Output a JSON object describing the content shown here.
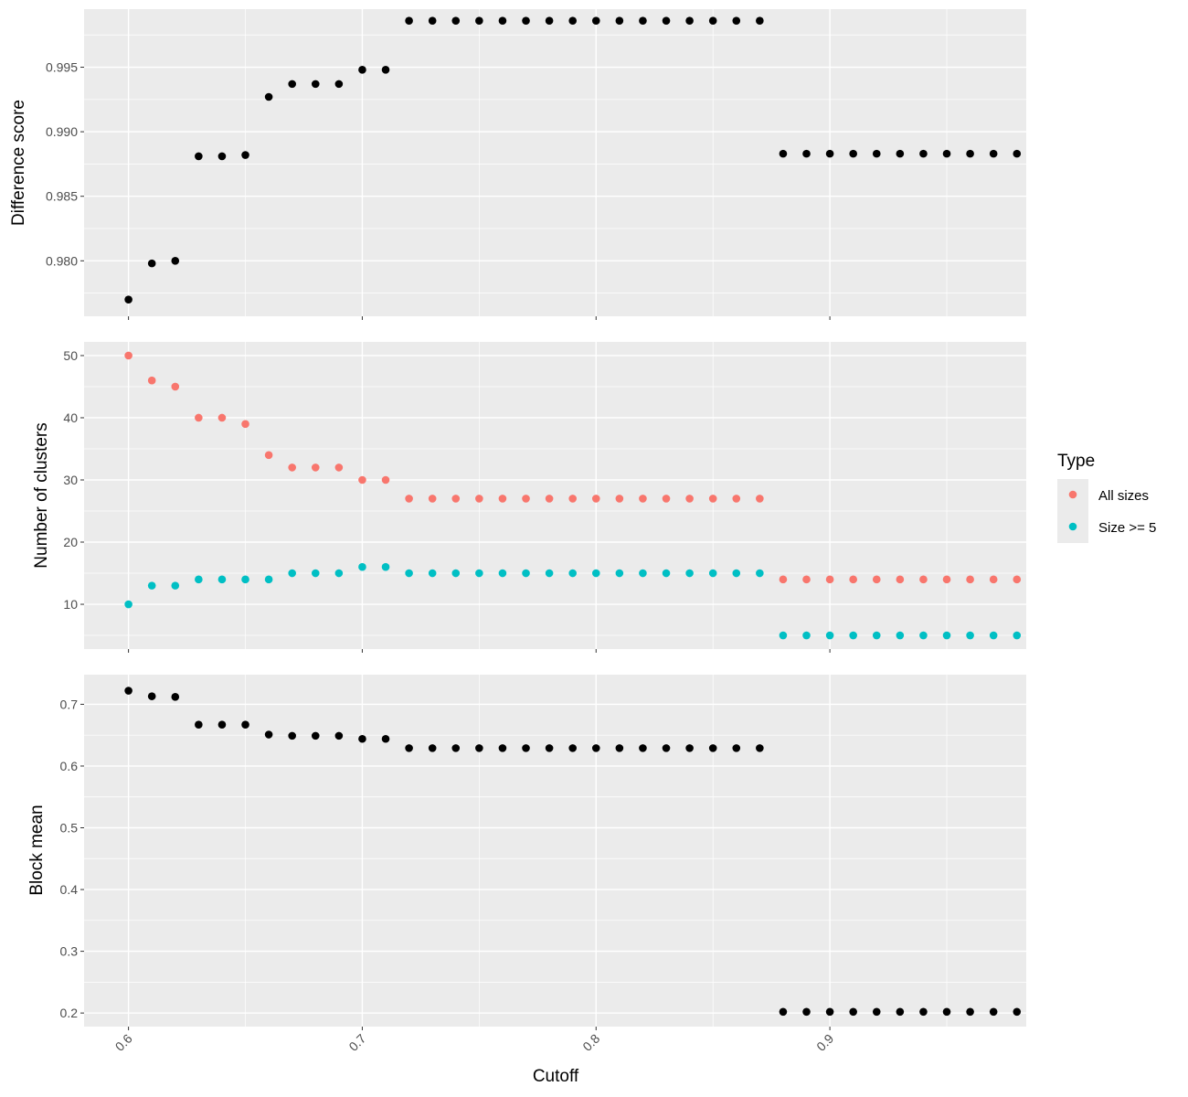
{
  "chart_data": [
    {
      "type": "scatter",
      "panel": "difference",
      "ylabel": "Difference score",
      "xlabel": "",
      "xlim": [
        0.581,
        0.984
      ],
      "ylim": [
        0.9757,
        0.9995
      ],
      "yticks": [
        0.98,
        0.985,
        0.99,
        0.995
      ],
      "ytick_labels": [
        "0.980",
        "0.985",
        "0.990",
        "0.995"
      ],
      "grid": true,
      "series": [
        {
          "color": "#000000",
          "x": [
            0.6,
            0.61,
            0.62,
            0.63,
            0.64,
            0.65,
            0.66,
            0.67,
            0.68,
            0.69,
            0.7,
            0.71,
            0.72,
            0.73,
            0.74,
            0.75,
            0.76,
            0.77,
            0.78,
            0.79,
            0.8,
            0.81,
            0.82,
            0.83,
            0.84,
            0.85,
            0.86,
            0.87,
            0.88,
            0.89,
            0.9,
            0.91,
            0.92,
            0.93,
            0.94,
            0.95,
            0.96,
            0.97,
            0.98
          ],
          "y": [
            0.977,
            0.9798,
            0.98,
            0.9881,
            0.9881,
            0.9882,
            0.9927,
            0.9937,
            0.9937,
            0.9937,
            0.9948,
            0.9948,
            0.9986,
            0.9986,
            0.9986,
            0.9986,
            0.9986,
            0.9986,
            0.9986,
            0.9986,
            0.9986,
            0.9986,
            0.9986,
            0.9986,
            0.9986,
            0.9986,
            0.9986,
            0.9986,
            0.9883,
            0.9883,
            0.9883,
            0.9883,
            0.9883,
            0.9883,
            0.9883,
            0.9883,
            0.9883,
            0.9883,
            0.9883
          ]
        }
      ]
    },
    {
      "type": "scatter",
      "panel": "clusters",
      "ylabel": "Number of clusters",
      "xlabel": "",
      "xlim": [
        0.581,
        0.984
      ],
      "ylim": [
        2.8,
        52.2
      ],
      "yticks": [
        10,
        20,
        30,
        40,
        50
      ],
      "ytick_labels": [
        "10",
        "20",
        "30",
        "40",
        "50"
      ],
      "grid": true,
      "legend": {
        "title": "Type",
        "placement": "right"
      },
      "series": [
        {
          "name": "All sizes",
          "color": "#F8766D",
          "x": [
            0.6,
            0.61,
            0.62,
            0.63,
            0.64,
            0.65,
            0.66,
            0.67,
            0.68,
            0.69,
            0.7,
            0.71,
            0.72,
            0.73,
            0.74,
            0.75,
            0.76,
            0.77,
            0.78,
            0.79,
            0.8,
            0.81,
            0.82,
            0.83,
            0.84,
            0.85,
            0.86,
            0.87,
            0.88,
            0.89,
            0.9,
            0.91,
            0.92,
            0.93,
            0.94,
            0.95,
            0.96,
            0.97,
            0.98
          ],
          "y": [
            50,
            46,
            45,
            40,
            40,
            39,
            34,
            32,
            32,
            32,
            30,
            30,
            27,
            27,
            27,
            27,
            27,
            27,
            27,
            27,
            27,
            27,
            27,
            27,
            27,
            27,
            27,
            27,
            14,
            14,
            14,
            14,
            14,
            14,
            14,
            14,
            14,
            14,
            14
          ]
        },
        {
          "name": "Size >= 5",
          "color": "#00BFC4",
          "x": [
            0.6,
            0.61,
            0.62,
            0.63,
            0.64,
            0.65,
            0.66,
            0.67,
            0.68,
            0.69,
            0.7,
            0.71,
            0.72,
            0.73,
            0.74,
            0.75,
            0.76,
            0.77,
            0.78,
            0.79,
            0.8,
            0.81,
            0.82,
            0.83,
            0.84,
            0.85,
            0.86,
            0.87,
            0.88,
            0.89,
            0.9,
            0.91,
            0.92,
            0.93,
            0.94,
            0.95,
            0.96,
            0.97,
            0.98
          ],
          "y": [
            10,
            13,
            13,
            14,
            14,
            14,
            14,
            15,
            15,
            15,
            16,
            16,
            15,
            15,
            15,
            15,
            15,
            15,
            15,
            15,
            15,
            15,
            15,
            15,
            15,
            15,
            15,
            15,
            5,
            5,
            5,
            5,
            5,
            5,
            5,
            5,
            5,
            5,
            5
          ]
        }
      ]
    },
    {
      "type": "scatter",
      "panel": "blockmean",
      "ylabel": "Block mean",
      "xlabel": "Cutoff",
      "xlim": [
        0.581,
        0.984
      ],
      "xticks": [
        0.6,
        0.7,
        0.8,
        0.9
      ],
      "xtick_labels": [
        "0.6",
        "0.7",
        "0.8",
        "0.9"
      ],
      "ylim": [
        0.178,
        0.748
      ],
      "yticks": [
        0.2,
        0.3,
        0.4,
        0.5,
        0.6,
        0.7
      ],
      "ytick_labels": [
        "0.2",
        "0.3",
        "0.4",
        "0.5",
        "0.6",
        "0.7"
      ],
      "grid": true,
      "series": [
        {
          "color": "#000000",
          "x": [
            0.6,
            0.61,
            0.62,
            0.63,
            0.64,
            0.65,
            0.66,
            0.67,
            0.68,
            0.69,
            0.7,
            0.71,
            0.72,
            0.73,
            0.74,
            0.75,
            0.76,
            0.77,
            0.78,
            0.79,
            0.8,
            0.81,
            0.82,
            0.83,
            0.84,
            0.85,
            0.86,
            0.87,
            0.88,
            0.89,
            0.9,
            0.91,
            0.92,
            0.93,
            0.94,
            0.95,
            0.96,
            0.97,
            0.98
          ],
          "y": [
            0.722,
            0.713,
            0.712,
            0.667,
            0.667,
            0.667,
            0.651,
            0.649,
            0.649,
            0.649,
            0.644,
            0.644,
            0.629,
            0.629,
            0.629,
            0.629,
            0.629,
            0.629,
            0.629,
            0.629,
            0.629,
            0.629,
            0.629,
            0.629,
            0.629,
            0.629,
            0.629,
            0.629,
            0.202,
            0.202,
            0.202,
            0.202,
            0.202,
            0.202,
            0.202,
            0.202,
            0.202,
            0.202,
            0.202
          ]
        }
      ]
    }
  ]
}
